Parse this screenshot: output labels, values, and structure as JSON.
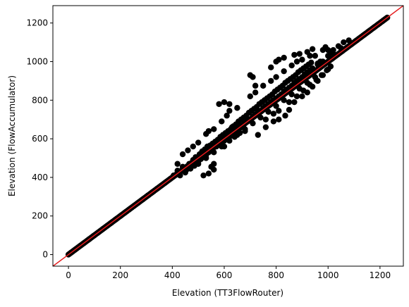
{
  "chart_data": {
    "type": "scatter",
    "title": "",
    "xlabel": "Elevation (TT3FlowRouter)",
    "ylabel": "Elevation (FlowAccumulator)",
    "xlim": [
      -60,
      1290
    ],
    "ylim": [
      -60,
      1290
    ],
    "xticks": [
      0,
      200,
      400,
      600,
      800,
      1000,
      1200
    ],
    "yticks": [
      0,
      200,
      400,
      600,
      800,
      1000,
      1200
    ],
    "grid": false,
    "marker_color": "#000000",
    "reference_line": {
      "description": "1:1 line",
      "color": "#e41a1c",
      "slope": 1,
      "intercept": 0
    },
    "series": [
      {
        "points": [
          [
            405,
            410
          ],
          [
            420,
            435
          ],
          [
            430,
            410
          ],
          [
            440,
            455
          ],
          [
            455,
            440
          ],
          [
            465,
            470
          ],
          [
            470,
            445
          ],
          [
            480,
            490
          ],
          [
            485,
            460
          ],
          [
            490,
            505
          ],
          [
            500,
            480
          ],
          [
            505,
            520
          ],
          [
            510,
            495
          ],
          [
            515,
            535
          ],
          [
            520,
            505
          ],
          [
            525,
            545
          ],
          [
            530,
            515
          ],
          [
            535,
            560
          ],
          [
            540,
            530
          ],
          [
            545,
            565
          ],
          [
            550,
            540
          ],
          [
            555,
            575
          ],
          [
            560,
            555
          ],
          [
            565,
            585
          ],
          [
            570,
            560
          ],
          [
            575,
            595
          ],
          [
            580,
            570
          ],
          [
            585,
            610
          ],
          [
            590,
            580
          ],
          [
            595,
            620
          ],
          [
            600,
            590
          ],
          [
            605,
            630
          ],
          [
            610,
            600
          ],
          [
            615,
            640
          ],
          [
            620,
            610
          ],
          [
            625,
            650
          ],
          [
            630,
            625
          ],
          [
            635,
            665
          ],
          [
            640,
            630
          ],
          [
            645,
            675
          ],
          [
            650,
            640
          ],
          [
            655,
            690
          ],
          [
            660,
            655
          ],
          [
            665,
            700
          ],
          [
            670,
            665
          ],
          [
            675,
            710
          ],
          [
            680,
            680
          ],
          [
            685,
            720
          ],
          [
            690,
            695
          ],
          [
            695,
            735
          ],
          [
            700,
            700
          ],
          [
            705,
            745
          ],
          [
            710,
            715
          ],
          [
            715,
            755
          ],
          [
            720,
            725
          ],
          [
            725,
            765
          ],
          [
            730,
            740
          ],
          [
            735,
            780
          ],
          [
            740,
            745
          ],
          [
            745,
            790
          ],
          [
            750,
            760
          ],
          [
            755,
            800
          ],
          [
            760,
            770
          ],
          [
            765,
            810
          ],
          [
            770,
            780
          ],
          [
            775,
            820
          ],
          [
            780,
            790
          ],
          [
            785,
            830
          ],
          [
            790,
            800
          ],
          [
            795,
            845
          ],
          [
            800,
            810
          ],
          [
            805,
            855
          ],
          [
            810,
            820
          ],
          [
            815,
            865
          ],
          [
            820,
            830
          ],
          [
            825,
            875
          ],
          [
            830,
            845
          ],
          [
            835,
            890
          ],
          [
            840,
            855
          ],
          [
            845,
            900
          ],
          [
            850,
            865
          ],
          [
            855,
            910
          ],
          [
            860,
            875
          ],
          [
            865,
            920
          ],
          [
            870,
            890
          ],
          [
            875,
            930
          ],
          [
            880,
            900
          ],
          [
            885,
            945
          ],
          [
            890,
            910
          ],
          [
            895,
            955
          ],
          [
            900,
            920
          ],
          [
            905,
            965
          ],
          [
            910,
            935
          ],
          [
            915,
            975
          ],
          [
            920,
            945
          ],
          [
            925,
            985
          ],
          [
            930,
            955
          ],
          [
            935,
            995
          ],
          [
            940,
            965
          ],
          [
            450,
            425
          ],
          [
            470,
            455
          ],
          [
            500,
            470
          ],
          [
            530,
            500
          ],
          [
            560,
            530
          ],
          [
            590,
            560
          ],
          [
            620,
            590
          ],
          [
            650,
            620
          ],
          [
            680,
            650
          ],
          [
            710,
            680
          ],
          [
            740,
            710
          ],
          [
            770,
            740
          ],
          [
            800,
            770
          ],
          [
            830,
            800
          ],
          [
            860,
            830
          ],
          [
            890,
            860
          ],
          [
            920,
            890
          ],
          [
            950,
            920
          ],
          [
            540,
            420
          ],
          [
            550,
            455
          ],
          [
            560,
            470
          ],
          [
            420,
            470
          ],
          [
            440,
            520
          ],
          [
            460,
            540
          ],
          [
            480,
            560
          ],
          [
            500,
            580
          ],
          [
            530,
            625
          ],
          [
            560,
            650
          ],
          [
            590,
            690
          ],
          [
            610,
            720
          ],
          [
            620,
            745
          ],
          [
            650,
            760
          ],
          [
            700,
            820
          ],
          [
            720,
            840
          ],
          [
            750,
            875
          ],
          [
            780,
            900
          ],
          [
            800,
            920
          ],
          [
            830,
            950
          ],
          [
            860,
            980
          ],
          [
            880,
            1000
          ],
          [
            900,
            1010
          ],
          [
            930,
            1030
          ],
          [
            730,
            620
          ],
          [
            760,
            660
          ],
          [
            790,
            690
          ],
          [
            810,
            700
          ],
          [
            835,
            720
          ],
          [
            850,
            750
          ],
          [
            870,
            790
          ],
          [
            900,
            820
          ],
          [
            920,
            840
          ],
          [
            940,
            870
          ],
          [
            960,
            900
          ],
          [
            980,
            930
          ],
          [
            1000,
            960
          ],
          [
            1010,
            975
          ],
          [
            970,
            1000
          ],
          [
            960,
            985
          ],
          [
            540,
            640
          ],
          [
            580,
            780
          ],
          [
            600,
            790
          ],
          [
            620,
            780
          ],
          [
            630,
            660
          ],
          [
            640,
            660
          ],
          [
            700,
            930
          ],
          [
            710,
            920
          ],
          [
            720,
            875
          ],
          [
            780,
            970
          ],
          [
            800,
            1000
          ],
          [
            810,
            1010
          ],
          [
            830,
            1020
          ],
          [
            870,
            1035
          ],
          [
            890,
            1040
          ],
          [
            920,
            1050
          ],
          [
            940,
            1065
          ],
          [
            950,
            1030
          ],
          [
            980,
            1060
          ],
          [
            990,
            1075
          ],
          [
            1000,
            1060
          ],
          [
            1020,
            1060
          ],
          [
            1040,
            1080
          ],
          [
            1060,
            1100
          ],
          [
            1080,
            1110
          ],
          [
            1000,
            1030
          ],
          [
            1010,
            1050
          ],
          [
            1050,
            1070
          ],
          [
            1020,
            1040
          ],
          [
            980,
            1000
          ],
          [
            960,
            990
          ],
          [
            940,
            960
          ],
          [
            520,
            410
          ],
          [
            560,
            440
          ],
          [
            600,
            560
          ],
          [
            640,
            610
          ],
          [
            660,
            630
          ],
          [
            680,
            640
          ],
          [
            760,
            700
          ],
          [
            790,
            730
          ],
          [
            810,
            745
          ],
          [
            850,
            790
          ],
          [
            880,
            820
          ],
          [
            905,
            850
          ],
          [
            930,
            880
          ],
          [
            955,
            905
          ],
          [
            975,
            930
          ],
          [
            995,
            955
          ]
        ]
      }
    ]
  }
}
